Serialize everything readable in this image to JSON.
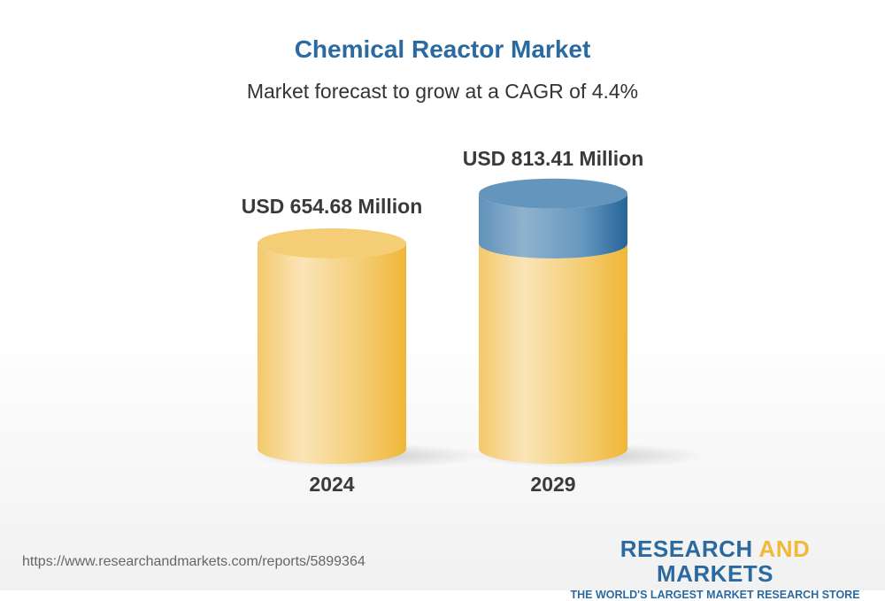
{
  "title": "Chemical Reactor Market",
  "subtitle": "Market forecast to grow at a CAGR of 4.4%",
  "chart_data": {
    "type": "bar",
    "categories": [
      "2024",
      "2029"
    ],
    "values": [
      654.68,
      813.41
    ],
    "data_labels": [
      "USD 654.68 Million",
      "USD 813.41 Million"
    ],
    "colors": {
      "base": "#f2c14f",
      "growth": "#2a6aa0"
    }
  },
  "footer": {
    "url": "https://www.researchandmarkets.com/reports/5899364",
    "logo_research": "RESEARCH",
    "logo_and": "AND",
    "logo_markets": "MARKETS",
    "logo_tagline": "THE WORLD'S LARGEST MARKET RESEARCH STORE"
  }
}
